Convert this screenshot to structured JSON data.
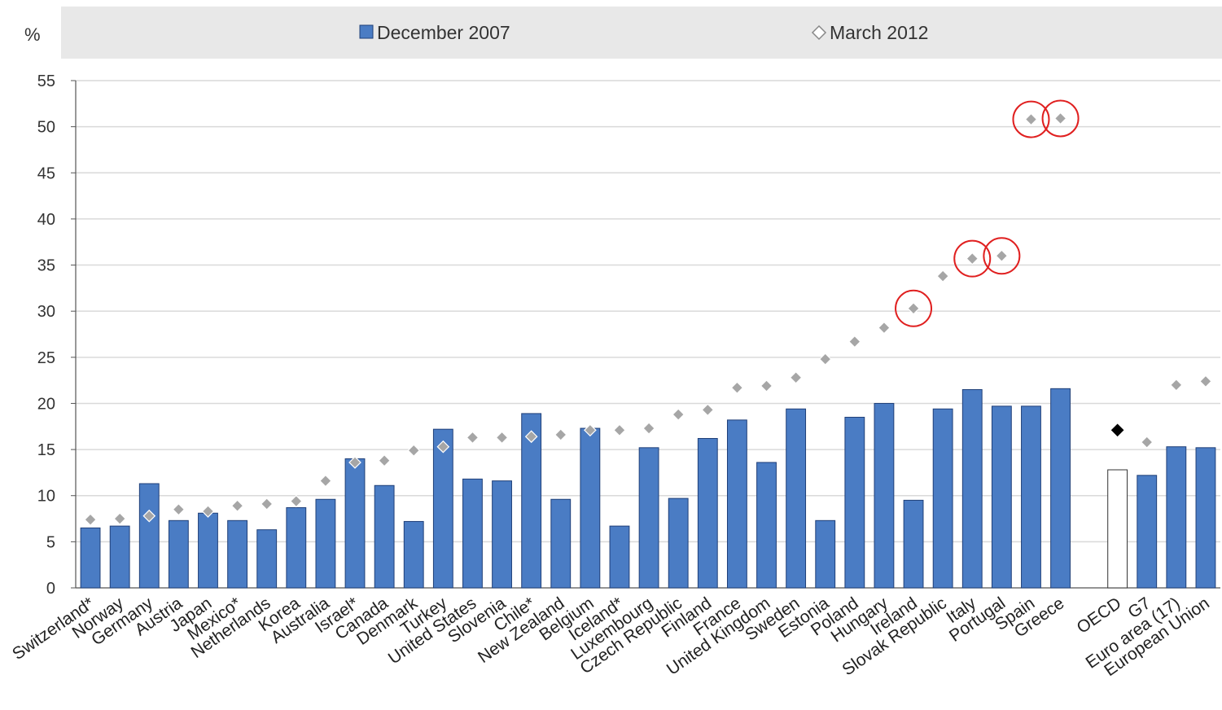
{
  "chart_data": {
    "type": "bar",
    "unit_label": "%",
    "ylim": [
      0,
      55
    ],
    "yticks": [
      0,
      5,
      10,
      15,
      20,
      25,
      30,
      35,
      40,
      45,
      50,
      55
    ],
    "grid": true,
    "legend_position": "top",
    "categories": [
      "Switzerland*",
      "Norway",
      "Germany",
      "Austria",
      "Japan",
      "Mexico*",
      "Netherlands",
      "Korea",
      "Australia",
      "Israel*",
      "Canada",
      "Denmark",
      "Turkey",
      "United States",
      "Slovenia",
      "Chile*",
      "New Zealand",
      "Belgium",
      "Iceland*",
      "Luxembourg",
      "Czech Republic",
      "Finland",
      "France",
      "United Kingdom",
      "Sweden",
      "Estonia",
      "Poland",
      "Hungary",
      "Ireland",
      "Slovak Republic",
      "Italy",
      "Portugal",
      "Spain",
      "Greece",
      "OECD",
      "G7",
      "Euro area (17)",
      "European Union"
    ],
    "series": [
      {
        "name": "December 2007",
        "marker": "bar",
        "color": "#4a7cc4",
        "values": [
          6.5,
          6.7,
          11.3,
          7.3,
          8.1,
          7.3,
          6.3,
          8.7,
          9.6,
          14.0,
          11.1,
          7.2,
          17.2,
          11.8,
          11.6,
          18.9,
          9.6,
          17.3,
          6.7,
          15.2,
          9.7,
          16.2,
          18.2,
          13.6,
          19.4,
          7.3,
          18.5,
          20.0,
          9.5,
          19.4,
          21.5,
          19.7,
          19.7,
          21.6,
          12.8,
          12.2,
          15.3,
          15.2
        ]
      },
      {
        "name": "March 2012",
        "marker": "diamond",
        "color": "#a6a6a6",
        "values": [
          7.4,
          7.5,
          7.8,
          8.5,
          8.3,
          8.9,
          9.1,
          9.4,
          11.6,
          13.6,
          13.8,
          14.9,
          15.3,
          16.3,
          16.3,
          16.4,
          16.6,
          17.1,
          17.1,
          17.3,
          18.8,
          19.3,
          21.7,
          21.9,
          22.8,
          24.8,
          26.7,
          28.2,
          30.3,
          33.8,
          35.7,
          36.0,
          50.8,
          50.9,
          17.1,
          15.8,
          22.0,
          22.4
        ]
      }
    ],
    "highlighted_bar_index": 34,
    "highlighted_bar_color": "#ffffff",
    "highlighted_marker_color": "#000000",
    "circled_categories": [
      "Ireland",
      "Italy",
      "Portugal",
      "Spain",
      "Greece"
    ],
    "circle_color": "#e02020"
  }
}
